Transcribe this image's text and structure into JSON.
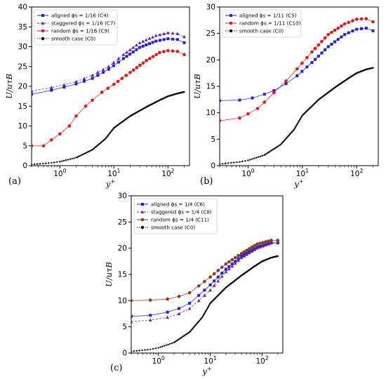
{
  "figure": {
    "colors": {
      "blue": "#1f1fd6",
      "purple": "#6a1f9a",
      "red": "#e01818",
      "brown": "#8b3a1a",
      "black": "#111111"
    }
  },
  "chart_data": [
    {
      "panel": "(a)",
      "type": "line",
      "xscale": "log",
      "xlim": [
        0.3,
        250
      ],
      "ylim": [
        0,
        40
      ],
      "yticks": [
        0,
        5,
        10,
        15,
        20,
        25,
        30,
        35,
        40
      ],
      "xtick_labels": [
        "10^0",
        "10^1",
        "10^2"
      ],
      "xlabel": "y+",
      "ylabel": "U/uτB",
      "legend_position": "top-left",
      "series": [
        {
          "name": "aligned ϕs = 1/16 (C4)",
          "color_key": "blue",
          "marker": "square",
          "x": [
            0.3,
            0.7,
            1.2,
            2,
            4,
            8,
            15,
            30,
            60,
            100,
            150,
            200
          ],
          "y": [
            18.0,
            19.0,
            19.8,
            20.6,
            22.0,
            24.3,
            27.0,
            29.8,
            31.4,
            32.0,
            31.8,
            31.0
          ]
        },
        {
          "name": "staggered ϕs = 1/16 (C7)",
          "color_key": "purple",
          "marker": "triangle",
          "x": [
            0.3,
            0.7,
            1.2,
            2,
            4,
            8,
            15,
            30,
            60,
            100,
            150,
            200
          ],
          "y": [
            18.8,
            19.7,
            20.4,
            21.2,
            22.8,
            25.0,
            28.0,
            31.0,
            32.8,
            33.5,
            33.3,
            32.5
          ]
        },
        {
          "name": "random ϕs = 1/16 (C9)",
          "color_key": "red",
          "marker": "circle",
          "x": [
            0.3,
            0.5,
            0.7,
            1.0,
            1.5,
            2,
            3,
            4,
            6,
            10,
            20,
            40,
            70,
            100,
            150,
            200
          ],
          "y": [
            5.0,
            5.0,
            6.5,
            8.0,
            10.0,
            12.5,
            15.0,
            16.5,
            18.5,
            20.5,
            23.5,
            26.5,
            28.5,
            29.0,
            28.8,
            28.0
          ]
        },
        {
          "name": "smooth case (C0)",
          "color_key": "black",
          "marker": "dot",
          "x": [
            0.3,
            0.7,
            1.0,
            2,
            4,
            7,
            10,
            20,
            40,
            70,
            100,
            150,
            200
          ],
          "y": [
            0.3,
            0.7,
            1.0,
            2.0,
            4.0,
            6.8,
            9.5,
            12.5,
            14.8,
            16.5,
            17.5,
            18.2,
            18.6
          ]
        }
      ]
    },
    {
      "panel": "(b)",
      "type": "line",
      "xscale": "log",
      "xlim": [
        0.3,
        250
      ],
      "ylim": [
        0,
        30
      ],
      "yticks": [
        0,
        5,
        10,
        15,
        20,
        25,
        30
      ],
      "xtick_labels": [
        "10^0",
        "10^1",
        "10^2"
      ],
      "xlabel": "y+",
      "ylabel": "U/uτB",
      "legend_position": "top-left",
      "series": [
        {
          "name": "aligned ϕs = 1/11 (C5)",
          "color_key": "blue",
          "marker": "square",
          "x": [
            0.3,
            0.7,
            1.2,
            2,
            3,
            5,
            8,
            15,
            30,
            60,
            100,
            150,
            200
          ],
          "y": [
            12.3,
            12.4,
            12.8,
            13.5,
            14.2,
            15.5,
            17.0,
            19.5,
            22.5,
            24.8,
            25.8,
            26.0,
            25.5
          ]
        },
        {
          "name": "random ϕs = 1/11 (C10)",
          "color_key": "red",
          "marker": "circle",
          "x": [
            0.3,
            0.7,
            1.0,
            1.5,
            2,
            3,
            5,
            8,
            15,
            30,
            60,
            100,
            150,
            200
          ],
          "y": [
            8.5,
            9.0,
            9.8,
            10.8,
            12.0,
            13.8,
            16.0,
            18.3,
            21.5,
            24.8,
            26.8,
            27.7,
            27.8,
            27.2
          ]
        },
        {
          "name": "smooth case (C0)",
          "color_key": "black",
          "marker": "dot",
          "x": [
            0.3,
            0.7,
            1.0,
            2,
            4,
            7,
            10,
            20,
            40,
            70,
            100,
            150,
            200
          ],
          "y": [
            0.3,
            0.7,
            1.0,
            2.0,
            4.0,
            6.8,
            9.5,
            12.5,
            14.8,
            16.5,
            17.5,
            18.2,
            18.5
          ]
        }
      ]
    },
    {
      "panel": "(c)",
      "type": "line",
      "xscale": "log",
      "xlim": [
        0.3,
        250
      ],
      "ylim": [
        0,
        30
      ],
      "yticks": [
        0,
        5,
        10,
        15,
        20,
        25,
        30
      ],
      "xtick_labels": [
        "10^0",
        "10^1",
        "10^2"
      ],
      "xlabel": "y+",
      "ylabel": "U/uτB",
      "legend_position": "top-left",
      "series": [
        {
          "name": "aligned ϕs = 1/4 (C6)",
          "color_key": "blue",
          "marker": "square",
          "x": [
            0.3,
            0.7,
            1.5,
            2.5,
            4,
            6,
            10,
            20,
            40,
            80,
            150,
            200
          ],
          "y": [
            7.0,
            7.2,
            7.8,
            8.5,
            9.5,
            11.0,
            13.0,
            16.0,
            18.5,
            20.2,
            21.0,
            21.0
          ]
        },
        {
          "name": "staggered ϕs = 1/4 (C8)",
          "color_key": "purple",
          "marker": "triangle",
          "x": [
            0.3,
            0.7,
            1.5,
            2.5,
            4,
            6,
            10,
            20,
            40,
            80,
            150,
            200
          ],
          "y": [
            6.0,
            6.3,
            6.8,
            7.5,
            8.5,
            10.0,
            12.0,
            15.5,
            18.2,
            20.0,
            21.0,
            21.2
          ]
        },
        {
          "name": "random ϕs = 1/4 (C11)",
          "color_key": "brown",
          "marker": "circle",
          "x": [
            0.3,
            0.7,
            1.5,
            2.5,
            4,
            6,
            10,
            20,
            40,
            80,
            150,
            200
          ],
          "y": [
            10.0,
            10.1,
            10.3,
            10.8,
            11.5,
            12.8,
            14.5,
            17.0,
            19.0,
            20.8,
            21.5,
            21.5
          ]
        },
        {
          "name": "smooth case (C0)",
          "color_key": "black",
          "marker": "dot",
          "x": [
            0.3,
            0.7,
            1.0,
            2,
            4,
            7,
            10,
            20,
            40,
            70,
            100,
            150,
            200
          ],
          "y": [
            0.3,
            0.7,
            1.0,
            2.0,
            4.0,
            6.8,
            9.5,
            12.5,
            14.8,
            16.5,
            17.5,
            18.2,
            18.5
          ]
        }
      ]
    }
  ]
}
